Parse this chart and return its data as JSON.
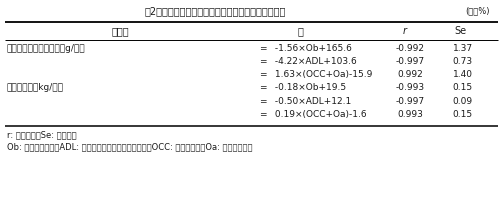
{
  "title": "表2　チモシー乾草の自由採食量と成分含量との関係",
  "unit_label": "(乾物%)",
  "header_cols": [
    "推　定",
    "式",
    "r",
    "Se"
  ],
  "rows": [
    {
      "label": "代謝体重当たり採食量（g/日）",
      "eq_sign": "=",
      "eq_body": " -1.56×Ob+165.6",
      "r": "-0.992",
      "se": "1.37"
    },
    {
      "label": "",
      "eq_sign": "=",
      "eq_body": " -4.22×ADL+103.6",
      "r": "-0.997",
      "se": "0.73"
    },
    {
      "label": "",
      "eq_sign": "=",
      "eq_body": " 1.63×(OCC+Oa)-15.9",
      "r": "0.992",
      "se": "1.40"
    },
    {
      "label": "乾物摄取量（kg/日）",
      "eq_sign": "=",
      "eq_body": " -0.18×Ob+19.5",
      "r": "-0.993",
      "se": "0.15"
    },
    {
      "label": "",
      "eq_sign": "=",
      "eq_body": " -0.50×ADL+12.1",
      "r": "-0.997",
      "se": "0.09"
    },
    {
      "label": "",
      "eq_sign": "=",
      "eq_body": " 0.19×(OCC+Oa)-1.6",
      "r": "0.993",
      "se": "0.15"
    }
  ],
  "footnote1": "r: 相関関係，Se: 標準誤差",
  "footnote2": "Ob: 低消化性繊維，ADL: 酸性デタージェントリグニン，OCC: 細胞内容物，Oa: 高消化性繊維",
  "bg_color": "#ffffff",
  "text_color": "#1a1a1a"
}
